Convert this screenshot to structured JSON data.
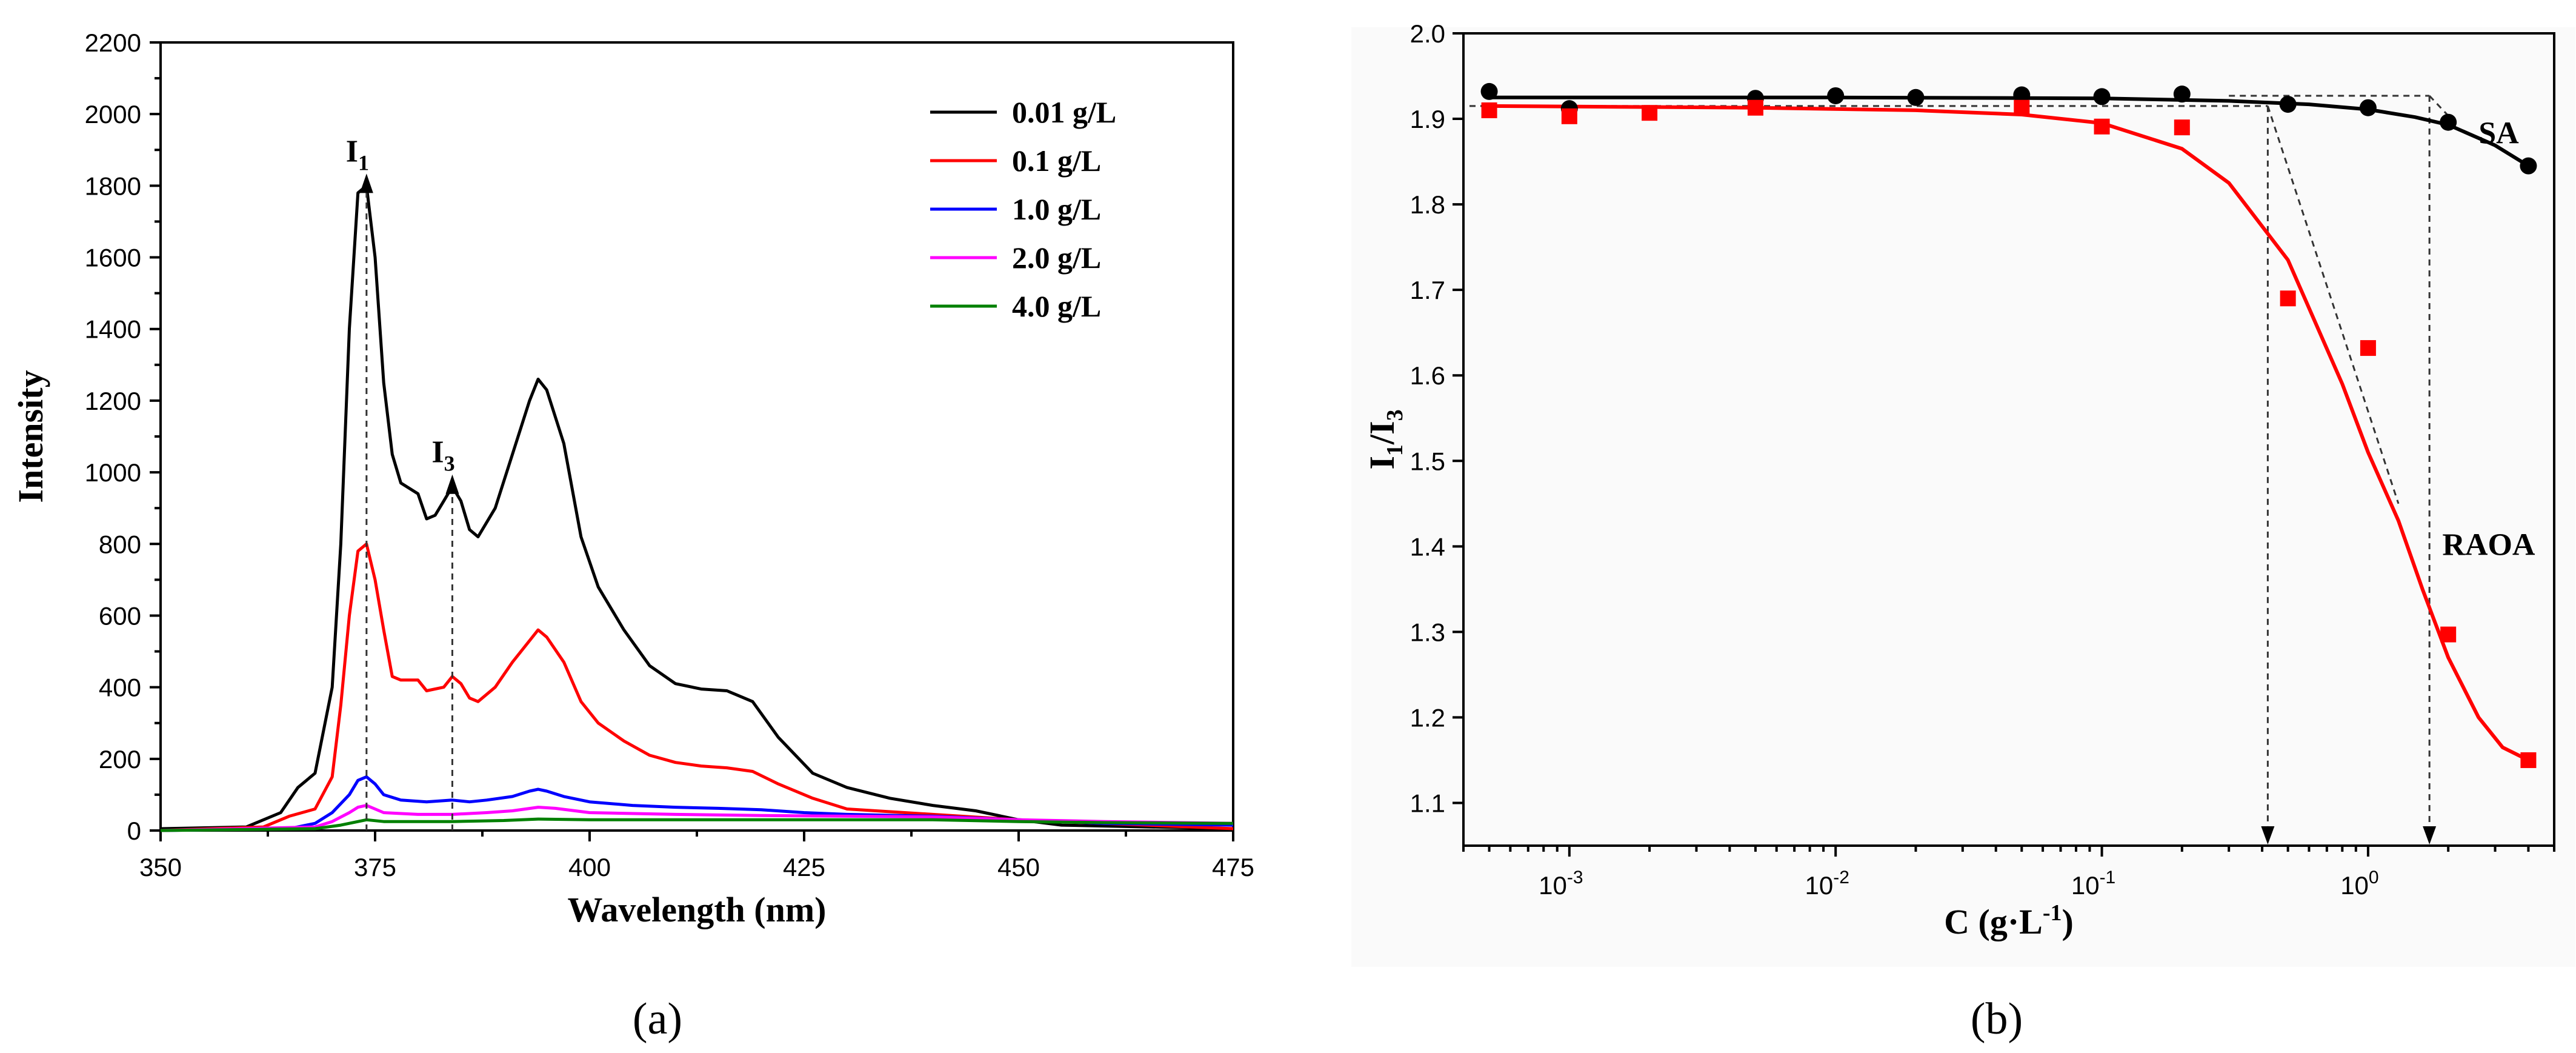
{
  "chart_data": [
    {
      "type": "line",
      "panel_label": "(a)",
      "xlabel": "Wavelength (nm)",
      "ylabel": "Intensity",
      "xlim": [
        350,
        475
      ],
      "ylim": [
        0,
        2200
      ],
      "x_ticks": [
        350,
        375,
        400,
        425,
        450,
        475
      ],
      "y_ticks": [
        0,
        200,
        400,
        600,
        800,
        1000,
        1200,
        1400,
        1600,
        1800,
        2000,
        2200
      ],
      "annotations": [
        {
          "text": "I",
          "sub": "1",
          "x": 374
        },
        {
          "text": "I",
          "sub": "3",
          "x": 384
        }
      ],
      "series": [
        {
          "name": "0.01 g/L",
          "color": "#000000",
          "points": [
            [
              350,
              5
            ],
            [
              360,
              10
            ],
            [
              364,
              50
            ],
            [
              366,
              120
            ],
            [
              368,
              160
            ],
            [
              370,
              400
            ],
            [
              371,
              800
            ],
            [
              372,
              1400
            ],
            [
              373,
              1780
            ],
            [
              374,
              1800
            ],
            [
              375,
              1600
            ],
            [
              376,
              1250
            ],
            [
              377,
              1050
            ],
            [
              378,
              970
            ],
            [
              380,
              940
            ],
            [
              381,
              870
            ],
            [
              382,
              880
            ],
            [
              383,
              920
            ],
            [
              384,
              960
            ],
            [
              385,
              920
            ],
            [
              386,
              840
            ],
            [
              387,
              820
            ],
            [
              389,
              900
            ],
            [
              391,
              1050
            ],
            [
              393,
              1200
            ],
            [
              394,
              1260
            ],
            [
              395,
              1230
            ],
            [
              397,
              1080
            ],
            [
              399,
              820
            ],
            [
              401,
              680
            ],
            [
              404,
              560
            ],
            [
              407,
              460
            ],
            [
              410,
              410
            ],
            [
              413,
              395
            ],
            [
              416,
              390
            ],
            [
              419,
              360
            ],
            [
              422,
              260
            ],
            [
              426,
              160
            ],
            [
              430,
              120
            ],
            [
              435,
              90
            ],
            [
              440,
              70
            ],
            [
              445,
              55
            ],
            [
              450,
              30
            ],
            [
              455,
              15
            ],
            [
              475,
              5
            ]
          ]
        },
        {
          "name": "0.1 g/L",
          "color": "#ff0000",
          "points": [
            [
              350,
              0
            ],
            [
              362,
              10
            ],
            [
              365,
              40
            ],
            [
              368,
              60
            ],
            [
              370,
              150
            ],
            [
              371,
              350
            ],
            [
              372,
              600
            ],
            [
              373,
              780
            ],
            [
              374,
              800
            ],
            [
              375,
              700
            ],
            [
              376,
              560
            ],
            [
              377,
              430
            ],
            [
              378,
              420
            ],
            [
              380,
              420
            ],
            [
              381,
              390
            ],
            [
              383,
              400
            ],
            [
              384,
              430
            ],
            [
              385,
              410
            ],
            [
              386,
              370
            ],
            [
              387,
              360
            ],
            [
              389,
              400
            ],
            [
              391,
              470
            ],
            [
              393,
              530
            ],
            [
              394,
              560
            ],
            [
              395,
              540
            ],
            [
              397,
              470
            ],
            [
              399,
              360
            ],
            [
              401,
              300
            ],
            [
              404,
              250
            ],
            [
              407,
              210
            ],
            [
              410,
              190
            ],
            [
              413,
              180
            ],
            [
              416,
              175
            ],
            [
              419,
              165
            ],
            [
              422,
              130
            ],
            [
              426,
              90
            ],
            [
              430,
              60
            ],
            [
              440,
              45
            ],
            [
              450,
              30
            ],
            [
              460,
              20
            ],
            [
              475,
              5
            ]
          ]
        },
        {
          "name": "1.0 g/L",
          "color": "#0000ff",
          "points": [
            [
              350,
              0
            ],
            [
              365,
              5
            ],
            [
              368,
              20
            ],
            [
              370,
              50
            ],
            [
              372,
              100
            ],
            [
              373,
              140
            ],
            [
              374,
              150
            ],
            [
              375,
              130
            ],
            [
              376,
              100
            ],
            [
              378,
              85
            ],
            [
              381,
              80
            ],
            [
              384,
              85
            ],
            [
              386,
              80
            ],
            [
              388,
              85
            ],
            [
              391,
              95
            ],
            [
              393,
              110
            ],
            [
              394,
              115
            ],
            [
              395,
              110
            ],
            [
              397,
              95
            ],
            [
              400,
              80
            ],
            [
              405,
              70
            ],
            [
              410,
              65
            ],
            [
              415,
              62
            ],
            [
              420,
              58
            ],
            [
              425,
              50
            ],
            [
              430,
              45
            ],
            [
              440,
              40
            ],
            [
              450,
              30
            ],
            [
              460,
              20
            ],
            [
              475,
              15
            ]
          ]
        },
        {
          "name": "2.0 g/L",
          "color": "#ff00ff",
          "points": [
            [
              350,
              0
            ],
            [
              368,
              10
            ],
            [
              370,
              25
            ],
            [
              372,
              50
            ],
            [
              373,
              65
            ],
            [
              374,
              70
            ],
            [
              375,
              60
            ],
            [
              376,
              50
            ],
            [
              380,
              45
            ],
            [
              384,
              45
            ],
            [
              388,
              50
            ],
            [
              391,
              55
            ],
            [
              394,
              65
            ],
            [
              396,
              62
            ],
            [
              400,
              50
            ],
            [
              410,
              45
            ],
            [
              420,
              42
            ],
            [
              430,
              40
            ],
            [
              440,
              38
            ],
            [
              450,
              30
            ],
            [
              460,
              25
            ],
            [
              475,
              20
            ]
          ]
        },
        {
          "name": "4.0 g/L",
          "color": "#008000",
          "points": [
            [
              350,
              0
            ],
            [
              368,
              5
            ],
            [
              371,
              15
            ],
            [
              374,
              30
            ],
            [
              376,
              25
            ],
            [
              380,
              25
            ],
            [
              384,
              25
            ],
            [
              390,
              28
            ],
            [
              394,
              32
            ],
            [
              400,
              30
            ],
            [
              410,
              30
            ],
            [
              420,
              30
            ],
            [
              430,
              30
            ],
            [
              440,
              30
            ],
            [
              450,
              25
            ],
            [
              460,
              22
            ],
            [
              475,
              20
            ]
          ]
        }
      ]
    },
    {
      "type": "scatter",
      "panel_label": "(b)",
      "xlabel": "C (g·L",
      "xlabel_sup": "-1",
      "xlabel_end": ")",
      "ylabel": "I",
      "ylabel_sub1": "1",
      "ylabel_mid": "/I",
      "ylabel_sub2": "3",
      "x_scale": "log",
      "xlim": [
        0.0004,
        5
      ],
      "ylim": [
        1.05,
        2.0
      ],
      "x_ticks": [
        0.001,
        0.01,
        0.1,
        1
      ],
      "x_tick_labels": [
        "10",
        "10",
        "10",
        "10"
      ],
      "x_tick_exps": [
        "-3",
        "-2",
        "-1",
        "0"
      ],
      "y_ticks": [
        1.1,
        1.2,
        1.3,
        1.4,
        1.5,
        1.6,
        1.7,
        1.8,
        1.9,
        2.0
      ],
      "y_tick_labels": [
        "1.1",
        "1.2",
        "1.3",
        "1.4",
        "1.5",
        "1.6",
        "1.7",
        "1.8",
        "1.9",
        "2.0"
      ],
      "cmc_markers": [
        0.42,
        1.7
      ],
      "series": [
        {
          "name": "SA",
          "color": "#000000",
          "marker": "circle",
          "x": [
            0.0005,
            0.001,
            0.005,
            0.01,
            0.02,
            0.05,
            0.1,
            0.2,
            0.5,
            1.0,
            2.0,
            4.0
          ],
          "y": [
            1.932,
            1.912,
            1.924,
            1.927,
            1.925,
            1.928,
            1.926,
            1.929,
            1.917,
            1.913,
            1.896,
            1.845
          ],
          "fit": [
            [
              0.0005,
              1.925
            ],
            [
              0.01,
              1.925
            ],
            [
              0.1,
              1.924
            ],
            [
              0.3,
              1.921
            ],
            [
              0.6,
              1.917
            ],
            [
              1.0,
              1.911
            ],
            [
              1.5,
              1.902
            ],
            [
              2.0,
              1.893
            ],
            [
              3.0,
              1.869
            ],
            [
              4.0,
              1.845
            ]
          ]
        },
        {
          "name": "RAOA",
          "color": "#ff0000",
          "marker": "square",
          "x": [
            0.0005,
            0.001,
            0.002,
            0.005,
            0.05,
            0.1,
            0.2,
            0.5,
            1.0,
            2.0,
            4.0
          ],
          "y": [
            1.91,
            1.903,
            1.907,
            1.913,
            1.913,
            1.891,
            1.89,
            1.69,
            1.632,
            1.297,
            1.15
          ],
          "fit": [
            [
              0.0005,
              1.915
            ],
            [
              0.005,
              1.913
            ],
            [
              0.02,
              1.91
            ],
            [
              0.05,
              1.905
            ],
            [
              0.1,
              1.895
            ],
            [
              0.2,
              1.865
            ],
            [
              0.3,
              1.825
            ],
            [
              0.5,
              1.735
            ],
            [
              0.8,
              1.59
            ],
            [
              1.0,
              1.51
            ],
            [
              1.3,
              1.43
            ],
            [
              1.6,
              1.35
            ],
            [
              2.0,
              1.27
            ],
            [
              2.6,
              1.2
            ],
            [
              3.2,
              1.165
            ],
            [
              4.0,
              1.15
            ]
          ]
        }
      ]
    }
  ]
}
